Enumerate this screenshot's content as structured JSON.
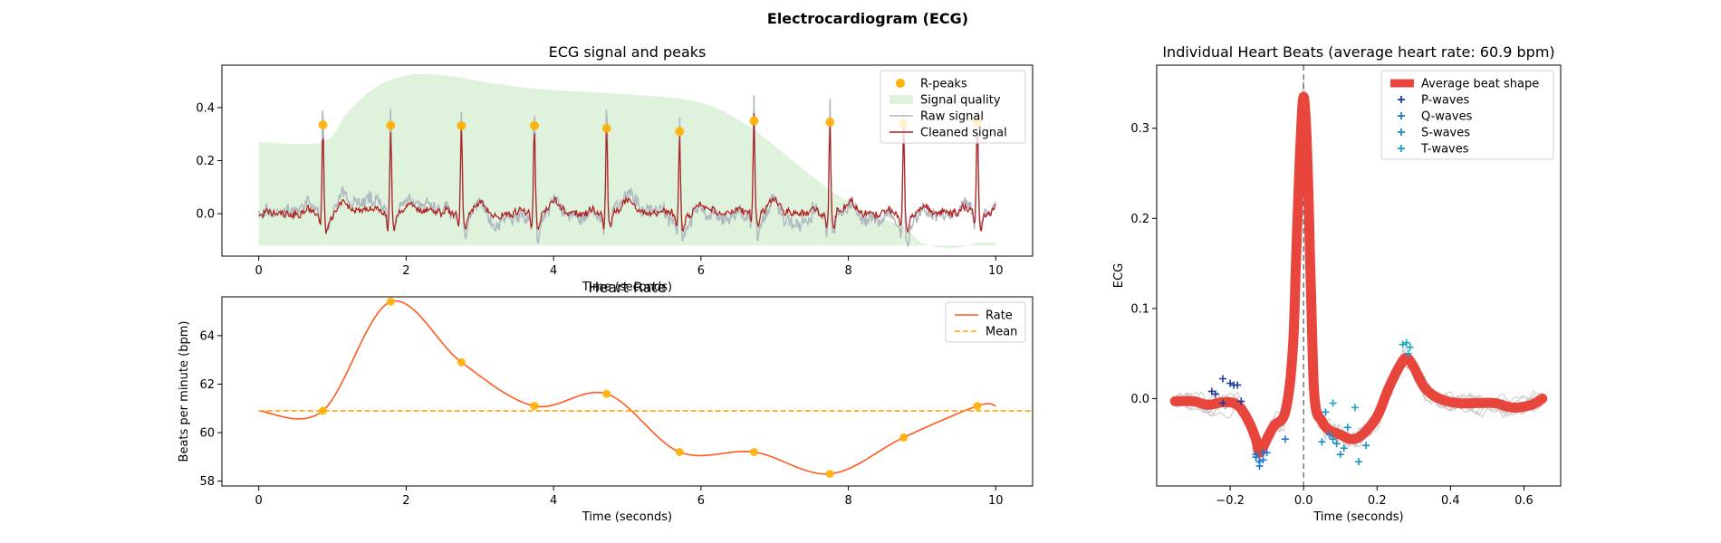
{
  "suptitle": "Electrocardiogram (ECG)",
  "colors": {
    "rpeak": "#FFB000",
    "quality": "#DFF2DC",
    "raw": "#B0B8C0",
    "cleaned": "#B01E1E",
    "rate": "#FF5A1F",
    "mean": "#FFA500",
    "avg_beat": "#E8453C",
    "individual": "#C8C8C8",
    "p_wave": "#1F3D9C",
    "q_wave": "#1F78D0",
    "s_wave": "#1A90C8",
    "t_wave": "#17A8C0",
    "vline": "#707070"
  },
  "chart_data": [
    {
      "id": "ecg_signal",
      "type": "line",
      "title": "ECG signal and peaks",
      "xlabel": "Time (seconds)",
      "ylabel": "",
      "xlim": [
        -0.5,
        10.5
      ],
      "ylim": [
        -0.16,
        0.56
      ],
      "xticks": [
        0,
        2,
        4,
        6,
        8,
        10
      ],
      "yticks": [
        0.0,
        0.2,
        0.4
      ],
      "legend": [
        "R-peaks",
        "Signal quality",
        "Raw signal",
        "Cleaned signal"
      ],
      "legend_position": "upper right",
      "r_peaks": {
        "x": [
          0.87,
          1.79,
          2.75,
          3.74,
          4.72,
          5.71,
          6.72,
          7.75,
          8.75,
          9.75
        ],
        "y": [
          0.335,
          0.333,
          0.332,
          0.332,
          0.322,
          0.31,
          0.35,
          0.345,
          0.34,
          0.345
        ]
      },
      "quality_curve": {
        "x": [
          0,
          0.87,
          1.2,
          1.6,
          2.0,
          2.3,
          2.7,
          3.2,
          3.8,
          4.4,
          5.0,
          5.5,
          5.8,
          6.2,
          6.7,
          7.2,
          7.8,
          8.3,
          8.75,
          9.0,
          9.4,
          9.75,
          10.0
        ],
        "y": [
          0.27,
          0.27,
          0.38,
          0.48,
          0.52,
          0.525,
          0.515,
          0.49,
          0.47,
          0.46,
          0.45,
          0.44,
          0.43,
          0.4,
          0.32,
          0.21,
          0.08,
          0.0,
          -0.05,
          -0.11,
          -0.13,
          -0.11,
          -0.11
        ]
      },
      "quality_baseline": -0.12
    },
    {
      "id": "heart_rate",
      "type": "line",
      "title": "Heart Rate",
      "xlabel": "Time (seconds)",
      "ylabel": "Beats per minute (bpm)",
      "xlim": [
        -0.5,
        10.5
      ],
      "ylim": [
        57.8,
        65.6
      ],
      "xticks": [
        0,
        2,
        4,
        6,
        8,
        10
      ],
      "yticks": [
        58,
        60,
        62,
        64
      ],
      "legend": [
        "Rate",
        "Mean"
      ],
      "legend_position": "upper right",
      "points": {
        "x": [
          0.87,
          1.79,
          2.75,
          3.74,
          4.72,
          5.71,
          6.72,
          7.75,
          8.75,
          9.75
        ],
        "y": [
          60.9,
          65.4,
          62.9,
          61.1,
          61.6,
          59.2,
          59.2,
          58.3,
          59.8,
          61.1
        ]
      },
      "mean": 60.9,
      "start_x": 0,
      "end_x": 10
    },
    {
      "id": "heart_beats",
      "type": "line",
      "title": "Individual Heart Beats (average heart rate: 60.9 bpm)",
      "xlabel": "Time (seconds)",
      "ylabel": "ECG",
      "xlim": [
        -0.4,
        0.7
      ],
      "ylim": [
        -0.097,
        0.37
      ],
      "xticks": [
        -0.2,
        0.0,
        0.2,
        0.4,
        0.6
      ],
      "yticks": [
        0.0,
        0.1,
        0.2,
        0.3
      ],
      "legend": [
        "Average beat shape",
        "P-waves",
        "Q-waves",
        "S-waves",
        "T-waves"
      ],
      "legend_position": "upper right",
      "average_beat": {
        "x": [
          -0.35,
          -0.3,
          -0.26,
          -0.22,
          -0.18,
          -0.15,
          -0.13,
          -0.12,
          -0.1,
          -0.08,
          -0.05,
          -0.03,
          -0.02,
          -0.01,
          0.0,
          0.01,
          0.02,
          0.03,
          0.05,
          0.07,
          0.1,
          0.13,
          0.16,
          0.2,
          0.23,
          0.26,
          0.28,
          0.3,
          0.33,
          0.37,
          0.42,
          0.47,
          0.52,
          0.57,
          0.62,
          0.65
        ],
        "y": [
          -0.003,
          -0.003,
          -0.007,
          -0.004,
          -0.007,
          -0.025,
          -0.045,
          -0.06,
          -0.045,
          -0.03,
          -0.015,
          0.05,
          0.16,
          0.27,
          0.335,
          0.27,
          0.12,
          0.0,
          -0.025,
          -0.035,
          -0.04,
          -0.045,
          -0.04,
          -0.02,
          0.01,
          0.035,
          0.045,
          0.035,
          0.012,
          0.0,
          -0.005,
          -0.005,
          -0.005,
          -0.01,
          -0.007,
          0.0
        ]
      },
      "p_waves": {
        "x": [
          -0.24,
          -0.22,
          -0.2,
          -0.19,
          -0.18,
          -0.22,
          -0.17,
          -0.25
        ],
        "y": [
          0.005,
          0.022,
          0.017,
          0.015,
          0.015,
          -0.005,
          -0.003,
          0.008
        ]
      },
      "q_waves": {
        "x": [
          -0.13,
          -0.12,
          -0.11,
          -0.12,
          -0.13,
          -0.1,
          -0.05,
          -0.11
        ],
        "y": [
          -0.065,
          -0.07,
          -0.06,
          -0.075,
          -0.062,
          -0.06,
          -0.045,
          -0.068
        ]
      },
      "s_waves": {
        "x": [
          0.05,
          0.07,
          0.09,
          0.1,
          0.12,
          0.08,
          0.11,
          0.15,
          0.17,
          0.06
        ],
        "y": [
          -0.048,
          -0.04,
          -0.05,
          -0.062,
          -0.032,
          -0.045,
          -0.055,
          -0.07,
          -0.052,
          -0.015
        ]
      },
      "t_waves": {
        "x": [
          0.08,
          0.14,
          0.27,
          0.28,
          0.29,
          0.285
        ],
        "y": [
          -0.005,
          -0.01,
          0.06,
          0.062,
          0.057,
          0.05
        ]
      }
    }
  ]
}
